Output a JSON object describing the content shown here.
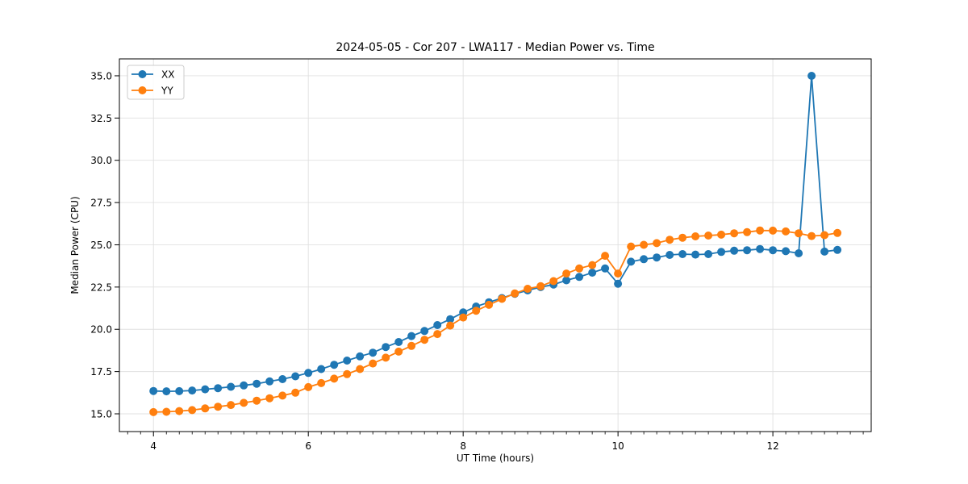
{
  "page": {
    "background": "#ffffff"
  },
  "chart_data": {
    "type": "line",
    "title": "2024-05-05 - Cor 207 - LWA117 - Median Power vs. Time",
    "xlabel": "UT Time (hours)",
    "ylabel": "Median Power (CPU)",
    "xlim": [
      3.56,
      13.27
    ],
    "ylim": [
      13.95,
      36.0
    ],
    "grid": true,
    "legend_position": "upper left",
    "x_major_ticks": [
      4,
      6,
      8,
      10,
      12
    ],
    "x_tick_labels": [
      "4",
      "6",
      "8",
      "10",
      "12"
    ],
    "x_minor_tick_step": 0.166667,
    "y_major_ticks": [
      15.0,
      17.5,
      20.0,
      22.5,
      25.0,
      27.5,
      30.0,
      32.5,
      35.0
    ],
    "y_tick_labels": [
      "15.0",
      "17.5",
      "20.0",
      "22.5",
      "25.0",
      "27.5",
      "30.0",
      "32.5",
      "35.0"
    ],
    "x": [
      4.0,
      4.167,
      4.333,
      4.5,
      4.667,
      4.833,
      5.0,
      5.167,
      5.333,
      5.5,
      5.667,
      5.833,
      6.0,
      6.167,
      6.333,
      6.5,
      6.667,
      6.833,
      7.0,
      7.167,
      7.333,
      7.5,
      7.667,
      7.833,
      8.0,
      8.167,
      8.333,
      8.5,
      8.667,
      8.833,
      9.0,
      9.167,
      9.333,
      9.5,
      9.667,
      9.833,
      10.0,
      10.167,
      10.333,
      10.5,
      10.667,
      10.833,
      11.0,
      11.167,
      11.333,
      11.5,
      11.667,
      11.833,
      12.0,
      12.167,
      12.333,
      12.5,
      12.667,
      12.833
    ],
    "series": [
      {
        "name": "XX",
        "color": "#1f77b4",
        "values": [
          16.35,
          16.33,
          16.34,
          16.38,
          16.45,
          16.52,
          16.6,
          16.68,
          16.78,
          16.92,
          17.05,
          17.22,
          17.42,
          17.65,
          17.9,
          18.15,
          18.4,
          18.62,
          18.95,
          19.25,
          19.6,
          19.9,
          20.25,
          20.6,
          21.0,
          21.35,
          21.6,
          21.85,
          22.1,
          22.3,
          22.5,
          22.65,
          22.9,
          23.1,
          23.35,
          23.6,
          22.7,
          24.0,
          24.15,
          24.25,
          24.4,
          24.45,
          24.42,
          24.45,
          24.58,
          24.65,
          24.68,
          24.75,
          24.68,
          24.62,
          24.5,
          35.0,
          24.6,
          24.7
        ]
      },
      {
        "name": "YY",
        "color": "#ff7f0e",
        "values": [
          15.1,
          15.12,
          15.16,
          15.22,
          15.32,
          15.42,
          15.52,
          15.65,
          15.78,
          15.92,
          16.08,
          16.25,
          16.58,
          16.82,
          17.08,
          17.35,
          17.65,
          17.98,
          18.32,
          18.68,
          19.02,
          19.38,
          19.72,
          20.22,
          20.7,
          21.1,
          21.45,
          21.8,
          22.12,
          22.4,
          22.55,
          22.85,
          23.3,
          23.6,
          23.8,
          24.35,
          23.3,
          24.9,
          25.0,
          25.1,
          25.3,
          25.42,
          25.5,
          25.55,
          25.6,
          25.68,
          25.75,
          25.85,
          25.84,
          25.79,
          25.68,
          25.52,
          25.57,
          25.7
        ]
      }
    ],
    "style": {
      "grid_color": "#e0e0e0",
      "marker_radius": 5,
      "line_width": 1.8
    }
  }
}
